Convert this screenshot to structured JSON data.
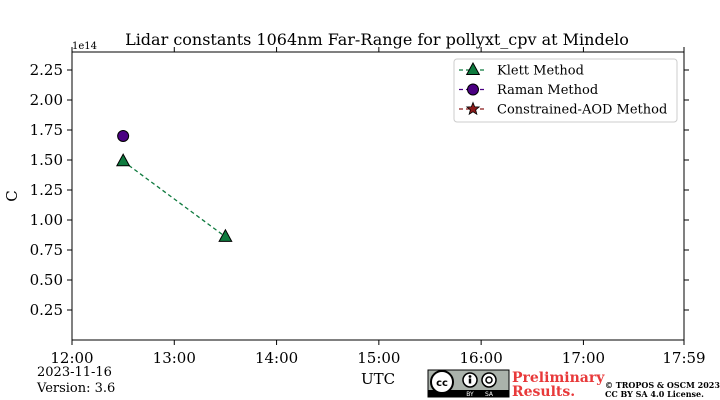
{
  "chart_data": {
    "type": "line",
    "title": "Lidar constants 1064nm Far-Range for pollyxt_cpv at Mindelo",
    "xlabel": "UTC",
    "ylabel": "C",
    "y_offset_label": "1e14",
    "x_range": [
      "12:00",
      "17:59"
    ],
    "ylim": [
      0.0,
      2.4
    ],
    "x_ticks": [
      "12:00",
      "13:00",
      "14:00",
      "15:00",
      "16:00",
      "17:00",
      "17:59"
    ],
    "y_ticks": [
      "0.25",
      "0.50",
      "0.75",
      "1.00",
      "1.25",
      "1.50",
      "1.75",
      "2.00",
      "2.25"
    ],
    "grid": false,
    "legend_position": "top-right",
    "series": [
      {
        "name": "Klett Method",
        "marker": "triangle",
        "line": "dashed",
        "color": "#0e7a3e",
        "points": [
          {
            "x": "12:30",
            "y": 1.49
          },
          {
            "x": "13:30",
            "y": 0.86
          }
        ]
      },
      {
        "name": "Raman Method",
        "marker": "circle",
        "line": "dashed",
        "color": "#4b0082",
        "points": [
          {
            "x": "12:30",
            "y": 1.7
          }
        ]
      },
      {
        "name": "Constrained-AOD Method",
        "marker": "star",
        "line": "dashed",
        "color": "#8b1a1a",
        "points": []
      }
    ]
  },
  "footer": {
    "date": "2023-11-16",
    "version": "Version: 3.6",
    "preliminary_line1": "Preliminary",
    "preliminary_line2": "Results.",
    "copyright_line1": "© TROPOS & OSCM 2023.",
    "copyright_line2": "CC BY SA 4.0 License.",
    "license_badge_by": "BY",
    "license_badge_sa": "SA"
  }
}
